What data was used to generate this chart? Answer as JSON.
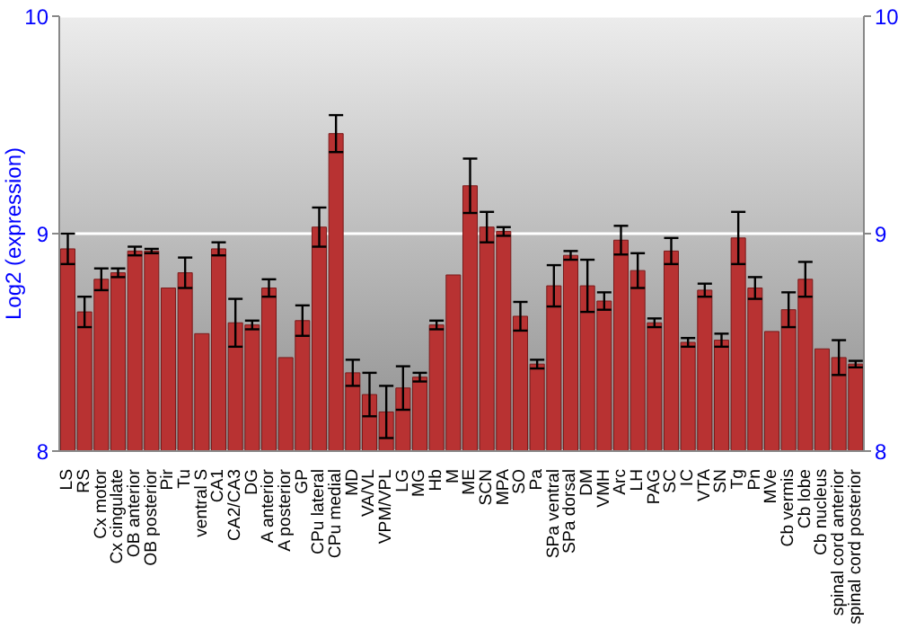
{
  "chart_data": {
    "type": "bar",
    "ylabel": "Log2 (expression)",
    "categories": [
      "LS",
      "RS",
      "Cx motor",
      "Cx cingulate",
      "OB anterior",
      "OB posterior",
      "Pir",
      "Tu",
      "ventral S",
      "CA1",
      "CA2/CA3",
      "DG",
      "A anterior",
      "A posterior",
      "GP",
      "CPu lateral",
      "CPu medial",
      "MD",
      "VA/VL",
      "VPM/VPL",
      "LG",
      "MG",
      "Hb",
      "M",
      "ME",
      "SCN",
      "MPA",
      "SO",
      "Pa",
      "SPa ventral",
      "SPa dorsal",
      "DM",
      "VMH",
      "Arc",
      "LH",
      "PAG",
      "SC",
      "IC",
      "VTA",
      "SN",
      "Tg",
      "Pn",
      "MVe",
      "Cb vermis",
      "Cb lobe",
      "Cb nucleus",
      "spinal cord anterior",
      "spinal cord posterior"
    ],
    "values": [
      8.93,
      8.64,
      8.79,
      8.82,
      8.92,
      8.92,
      8.75,
      8.82,
      8.54,
      8.93,
      8.59,
      8.58,
      8.75,
      8.43,
      8.6,
      9.03,
      9.46,
      8.36,
      8.26,
      8.18,
      8.29,
      8.34,
      8.58,
      8.81,
      9.22,
      9.03,
      9.01,
      8.62,
      8.4,
      8.76,
      8.9,
      8.76,
      8.69,
      8.97,
      8.83,
      8.59,
      8.92,
      8.5,
      8.74,
      8.51,
      8.98,
      8.75,
      8.55,
      8.65,
      8.79,
      8.47,
      8.43,
      8.4
    ],
    "errors": [
      0.07,
      0.07,
      0.05,
      0.02,
      0.02,
      0.01,
      null,
      0.07,
      null,
      0.03,
      0.11,
      0.02,
      0.04,
      null,
      0.07,
      0.09,
      0.085,
      0.06,
      0.1,
      0.12,
      0.1,
      0.02,
      0.02,
      null,
      0.125,
      0.07,
      0.02,
      0.066,
      0.02,
      0.095,
      0.02,
      0.12,
      0.04,
      0.066,
      0.08,
      0.02,
      0.06,
      0.02,
      0.03,
      0.03,
      0.12,
      0.05,
      null,
      0.08,
      0.08,
      null,
      0.08,
      0.015
    ],
    "color": "#b83232",
    "ylim": [
      8,
      10
    ],
    "yticks": [
      8,
      9,
      10
    ],
    "y2lim": [
      8,
      10
    ],
    "y2ticks": [
      8,
      9,
      10
    ],
    "grid": "y"
  }
}
